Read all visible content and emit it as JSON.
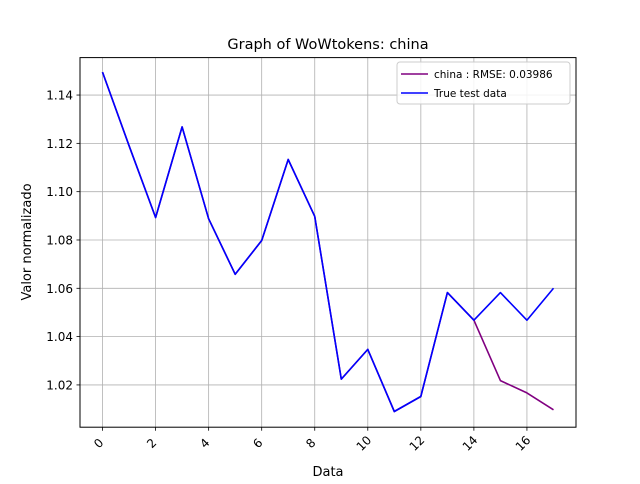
{
  "chart_data": {
    "type": "line",
    "title": "Graph of WoWtokens: china",
    "xlabel": "Data",
    "ylabel": "Valor normalizado",
    "xlim": [
      -0.85,
      17.85
    ],
    "ylim": [
      1.0025,
      1.1555
    ],
    "x_ticks": [
      0,
      2,
      4,
      6,
      8,
      10,
      12,
      14,
      16
    ],
    "y_ticks": [
      1.02,
      1.04,
      1.06,
      1.08,
      1.1,
      1.12,
      1.14
    ],
    "grid": true,
    "legend_position": "top-right",
    "series": [
      {
        "name": "china : RMSE: 0.03986",
        "color": "#800080",
        "x": [
          0,
          1,
          2,
          3,
          4,
          5,
          6,
          7,
          8,
          9,
          10,
          11,
          12,
          13,
          14,
          15,
          16,
          17
        ],
        "y": [
          1.1495,
          1.119,
          1.0893,
          1.1268,
          1.0888,
          1.0658,
          1.0798,
          1.1133,
          1.0898,
          1.0224,
          1.0347,
          1.009,
          1.0152,
          1.0582,
          1.0468,
          1.0218,
          1.0167,
          1.0097
        ]
      },
      {
        "name": "True test data",
        "color": "#0000ff",
        "x": [
          0,
          1,
          2,
          3,
          4,
          5,
          6,
          7,
          8,
          9,
          10,
          11,
          12,
          13,
          14,
          15,
          16,
          17
        ],
        "y": [
          1.1495,
          1.119,
          1.0893,
          1.1268,
          1.0888,
          1.0658,
          1.0798,
          1.1133,
          1.0898,
          1.0224,
          1.0347,
          1.009,
          1.0152,
          1.0582,
          1.0468,
          1.0582,
          1.0468,
          1.06
        ]
      }
    ]
  }
}
